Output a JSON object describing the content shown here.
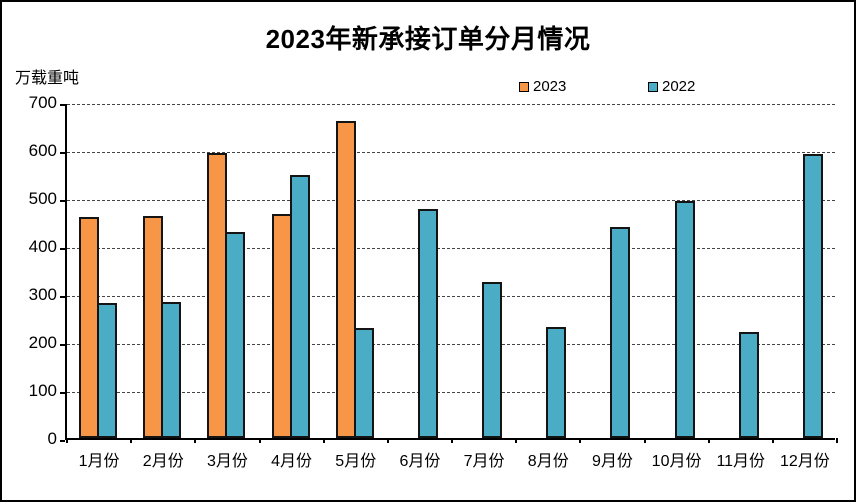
{
  "title": "2023年新承接订单分月情况",
  "unit_label": "万载重吨",
  "legend": {
    "items": [
      {
        "label": "2023",
        "color": "#F79646"
      },
      {
        "label": "2022",
        "color": "#4BACC6"
      }
    ]
  },
  "chart_data": {
    "type": "bar",
    "title": "2023年新承接订单分月情况",
    "ylabel": "万载重吨",
    "xlabel": "",
    "categories": [
      "1月份",
      "2月份",
      "3月份",
      "4月份",
      "5月份",
      "6月份",
      "7月份",
      "8月份",
      "9月份",
      "10月份",
      "11月份",
      "12月份"
    ],
    "series": [
      {
        "name": "2023",
        "color": "#F79646",
        "values": [
          461,
          463,
          594,
          467,
          660,
          null,
          null,
          null,
          null,
          null,
          null,
          null
        ]
      },
      {
        "name": "2022",
        "color": "#4BACC6",
        "values": [
          282,
          283,
          430,
          547,
          230,
          477,
          326,
          232,
          440,
          493,
          220,
          592
        ]
      }
    ],
    "ylim": [
      0,
      700
    ],
    "yticks": [
      0,
      100,
      200,
      300,
      400,
      500,
      600,
      700
    ],
    "grid": "horizontal-dashed",
    "legend_position": "top"
  }
}
